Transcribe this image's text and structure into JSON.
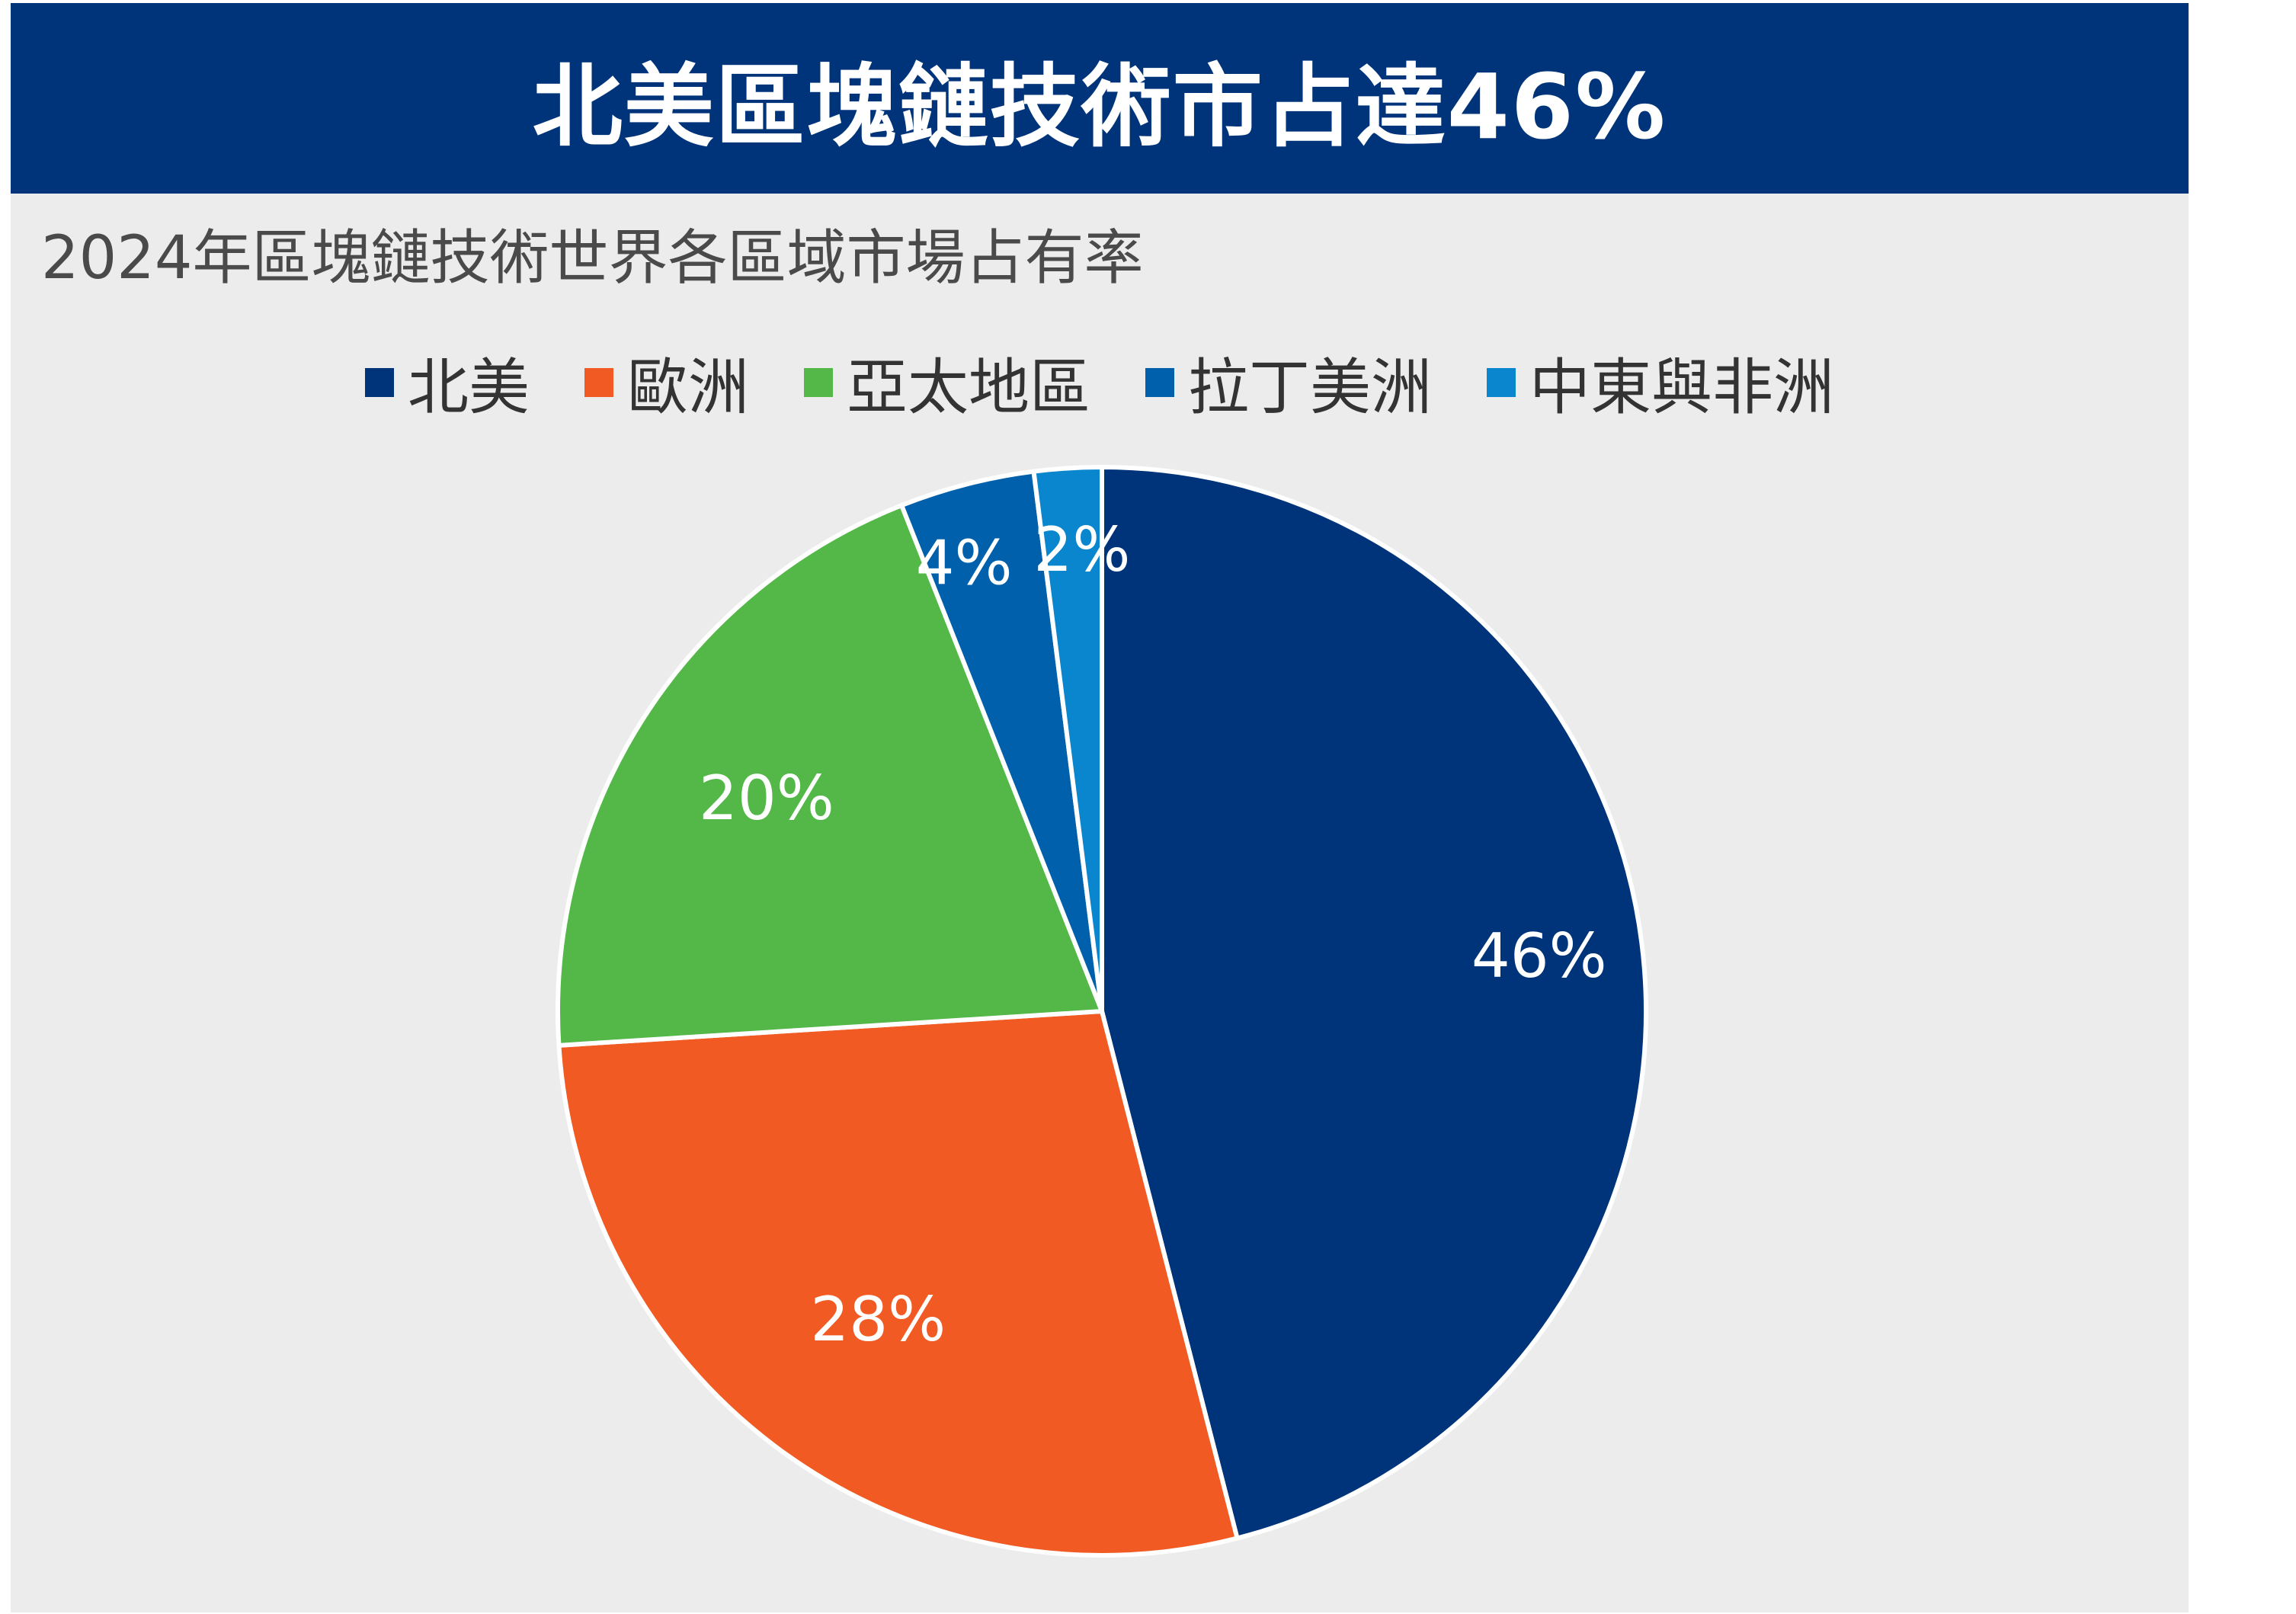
{
  "chart_data": {
    "type": "pie",
    "title": "北美區塊鏈技術市占達46%",
    "subtitle": "2024年區塊鏈技術世界各區域市場占有率",
    "legend_position": "top",
    "series": [
      {
        "name": "北美",
        "value": 46,
        "label": "46%",
        "color": "#00347a"
      },
      {
        "name": "歐洲",
        "value": 28,
        "label": "28%",
        "color": "#f15a22"
      },
      {
        "name": "亞太地區",
        "value": 20,
        "label": "20%",
        "color": "#53b848"
      },
      {
        "name": "拉丁美洲",
        "value": 4,
        "label": "4%",
        "color": "#0060ac"
      },
      {
        "name": "中東與非洲",
        "value": 2,
        "label": "2%",
        "color": "#0a86cf"
      }
    ]
  }
}
